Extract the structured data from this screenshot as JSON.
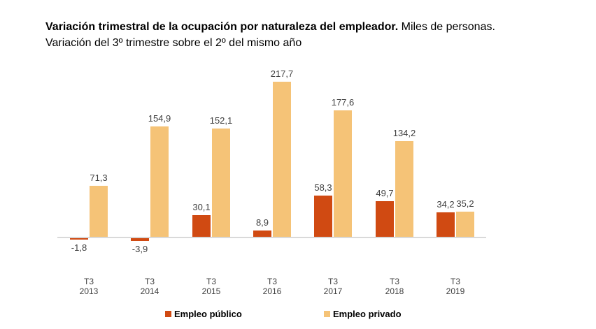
{
  "title": {
    "bold": "Variación trimestral de la ocupación por naturaleza del empleador.",
    "regular": " Miles de personas.",
    "subtitle": "Variación del 3º trimestre sobre el 2º del mismo año"
  },
  "chart_data": {
    "type": "bar",
    "title": "Variación trimestral de la ocupación por naturaleza del empleador. Miles de personas.",
    "subtitle": "Variación del 3º trimestre sobre el 2º del mismo año",
    "categories": [
      {
        "quarter": "T3",
        "year": "2013"
      },
      {
        "quarter": "T3",
        "year": "2014"
      },
      {
        "quarter": "T3",
        "year": "2015"
      },
      {
        "quarter": "T3",
        "year": "2016"
      },
      {
        "quarter": "T3",
        "year": "2017"
      },
      {
        "quarter": "T3",
        "year": "2018"
      },
      {
        "quarter": "T3",
        "year": "2019"
      }
    ],
    "series": [
      {
        "name": "Empleo público",
        "color": "#d04a12",
        "values": [
          -1.8,
          -3.9,
          30.1,
          8.9,
          58.3,
          49.7,
          34.2
        ],
        "labels": [
          "-1,8",
          "-3,9",
          "30,1",
          "8,9",
          "58,3",
          "49,7",
          "34,2"
        ]
      },
      {
        "name": "Empleo privado",
        "color": "#f5c377",
        "values": [
          71.3,
          154.9,
          152.1,
          217.7,
          177.6,
          134.2,
          35.2
        ],
        "labels": [
          "71,3",
          "154,9",
          "152,1",
          "217,7",
          "177,6",
          "134,2",
          "35,2"
        ]
      }
    ],
    "ylim": [
      -10,
      230
    ],
    "grid": false,
    "y_axis_visible": false,
    "legend_position": "bottom",
    "axis_color": "#d9d9d9"
  }
}
